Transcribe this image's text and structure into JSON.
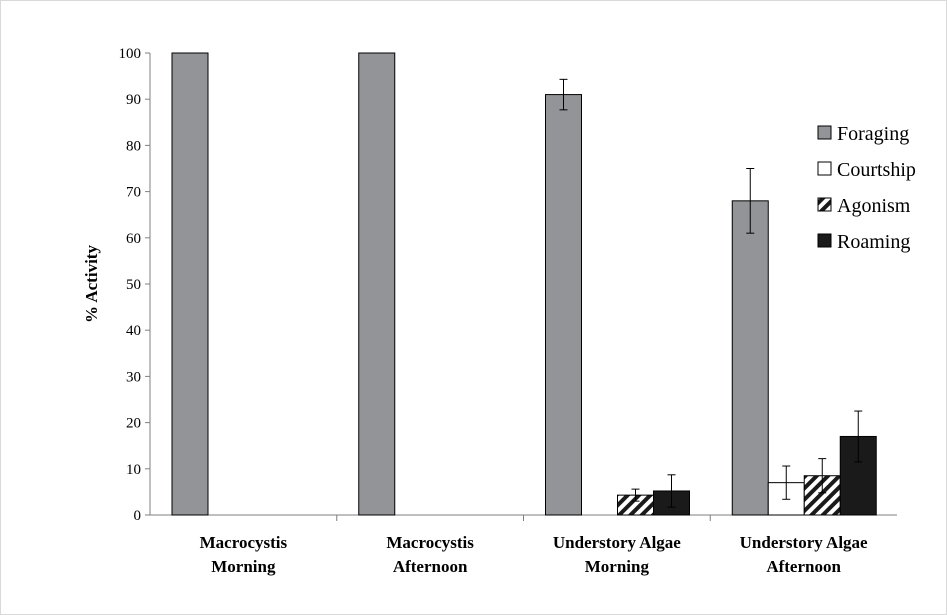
{
  "chart_data": {
    "type": "bar",
    "title": "",
    "xlabel": "",
    "ylabel": "% Activity",
    "ylim": [
      0,
      100
    ],
    "yticks": [
      0,
      10,
      20,
      30,
      40,
      50,
      60,
      70,
      80,
      90,
      100
    ],
    "categories": [
      [
        "Macrocystis",
        "Morning"
      ],
      [
        "Macrocystis",
        "Afternoon"
      ],
      [
        "Understory Algae",
        "Morning"
      ],
      [
        "Understory Algae",
        "Afternoon"
      ]
    ],
    "series": [
      {
        "name": "Foraging",
        "values": [
          100,
          100,
          91,
          68
        ],
        "errors": [
          null,
          null,
          3.3,
          7
        ],
        "color": "#929497",
        "pattern": "solid"
      },
      {
        "name": "Courtship",
        "values": [
          0,
          0,
          0,
          7
        ],
        "errors": [
          null,
          null,
          null,
          3.6
        ],
        "color": "#ffffff",
        "pattern": "solid"
      },
      {
        "name": "Agonism",
        "values": [
          0,
          0,
          4.3,
          8.5
        ],
        "errors": [
          null,
          null,
          1.3,
          3.7
        ],
        "color": "#ffffff",
        "pattern": "hatch"
      },
      {
        "name": "Roaming",
        "values": [
          0,
          0,
          5.2,
          17
        ],
        "errors": [
          null,
          null,
          3.5,
          5.5
        ],
        "color": "#1a1a1a",
        "pattern": "solid"
      }
    ],
    "grid": false,
    "legend": "right"
  }
}
